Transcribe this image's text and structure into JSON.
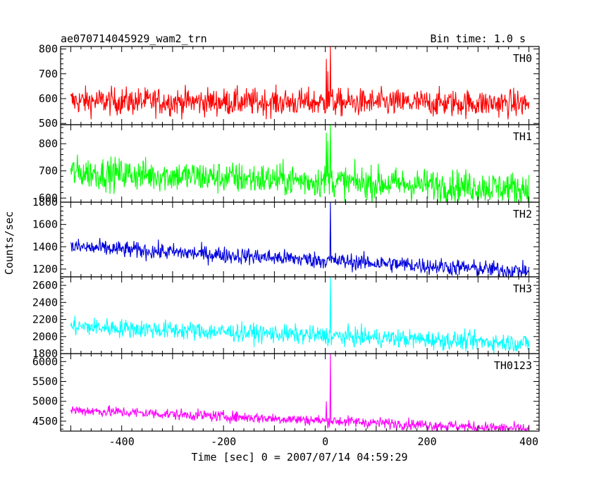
{
  "chart_data": {
    "type": "line",
    "title_left": "ae070714045929_wam2_trn",
    "title_right": "Bin time: 1.0 s",
    "xlabel": "Time [sec] 0 = 2007/07/14 04:59:29",
    "ylabel": "Counts/sec",
    "xlim": [
      -520,
      420
    ],
    "x_ticks": [
      -400,
      -200,
      0,
      200,
      400
    ],
    "x_range": [
      -500,
      400
    ],
    "bin_time": 1.0,
    "panels": [
      {
        "name": "TH0",
        "color": "#ff0000",
        "ylim": [
          495,
          810
        ],
        "y_ticks": [
          500,
          600,
          700,
          800
        ],
        "baseline_start": 590,
        "baseline_end": 580,
        "noise": 28,
        "peaks": [
          {
            "x": 2,
            "y": 760
          },
          {
            "x": 5,
            "y": 710
          },
          {
            "x": 10,
            "y": 810
          }
        ]
      },
      {
        "name": "TH1",
        "color": "#00ff00",
        "ylim": [
          585,
          870
        ],
        "y_ticks": [
          600,
          700,
          800
        ],
        "baseline_start": 695,
        "baseline_end": 635,
        "noise": 30,
        "peaks": [
          {
            "x": 2,
            "y": 840
          },
          {
            "x": 5,
            "y": 810
          },
          {
            "x": 10,
            "y": 870
          }
        ]
      },
      {
        "name": "TH2",
        "color": "#0000dd",
        "ylim": [
          1130,
          1800
        ],
        "y_ticks": [
          1200,
          1400,
          1600,
          1800
        ],
        "baseline_start": 1400,
        "baseline_end": 1180,
        "noise": 38,
        "peaks": [
          {
            "x": 10,
            "y": 1800
          }
        ]
      },
      {
        "name": "TH3",
        "color": "#00ffff",
        "ylim": [
          1800,
          2700
        ],
        "y_ticks": [
          1800,
          2000,
          2200,
          2400,
          2600
        ],
        "baseline_start": 2120,
        "baseline_end": 1920,
        "noise": 55,
        "peaks": [
          {
            "x": 10,
            "y": 2700
          }
        ]
      },
      {
        "name": "TH0123",
        "color": "#ff00ff",
        "ylim": [
          4250,
          6200
        ],
        "y_ticks": [
          4500,
          5000,
          5500,
          6000
        ],
        "baseline_start": 4780,
        "baseline_end": 4300,
        "noise": 70,
        "peaks": [
          {
            "x": 2,
            "y": 5000
          },
          {
            "x": 10,
            "y": 6200
          }
        ]
      }
    ]
  }
}
